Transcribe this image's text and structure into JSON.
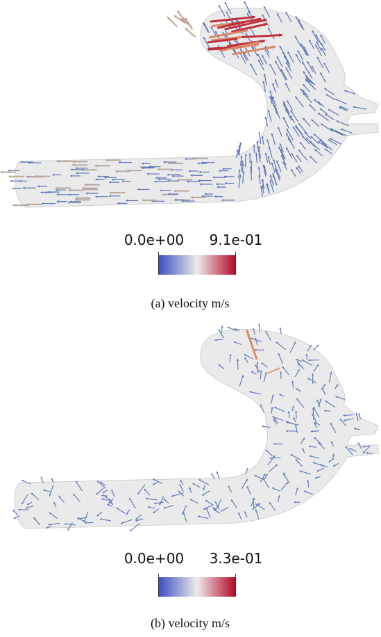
{
  "panels": [
    {
      "colorbar": {
        "min": "0.0e+00",
        "max": "9.1e-01"
      },
      "caption": "(a) velocity m/s"
    },
    {
      "colorbar": {
        "min": "0.0e+00",
        "max": "3.3e-01"
      },
      "caption": "(b) velocity m/s"
    }
  ]
}
